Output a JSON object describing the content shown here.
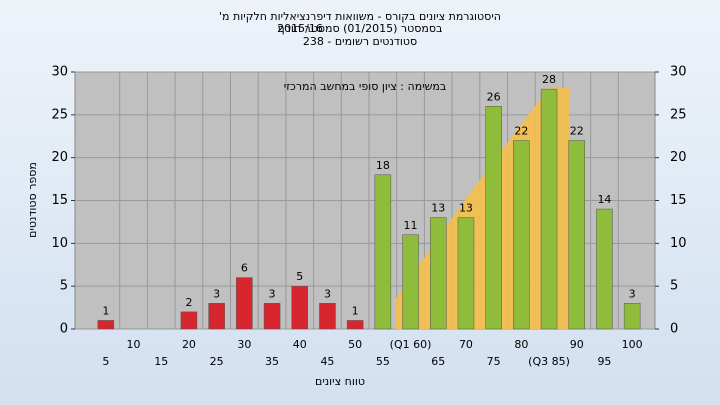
{
  "chart_data": {
    "type": "bar",
    "title_lines": [
      "היסטוגרמת ציונים בקורס - משוואות דיפרנציאליות חלקיות מ'",
      "בסמסטר  (01/2015)  סמסטר חורף",
      "2015/16",
      "סטודנטים רשומים - 238"
    ],
    "annotation": "במשימה : ציון סופי במחשב המרכזי",
    "x_label": "טווח ציונים",
    "y_label": "מספר סטודנטים",
    "categories": [
      "5",
      "10",
      "15",
      "20",
      "25",
      "30",
      "35",
      "40",
      "45",
      "50",
      "55",
      "(Q1 60)",
      "65",
      "70",
      "75",
      "80",
      "(Q3 85)",
      "90",
      "95",
      "100"
    ],
    "values": [
      1,
      0,
      0,
      2,
      3,
      6,
      3,
      5,
      3,
      1,
      18,
      11,
      13,
      13,
      26,
      22,
      28,
      22,
      14,
      3
    ],
    "value_labels": [
      "1",
      null,
      null,
      "2",
      "3",
      "6",
      "3",
      "5",
      "3",
      "1",
      "18",
      "11",
      "13",
      "13",
      "26",
      "22",
      "28",
      "22",
      "14",
      "3"
    ],
    "bar_colors": [
      "#d8262f",
      "#d8262f",
      "#d8262f",
      "#d8262f",
      "#d8262f",
      "#d8262f",
      "#d8262f",
      "#d8262f",
      "#d8262f",
      "#d8262f",
      "#8fbc3a",
      "#8fbc3a",
      "#8fbc3a",
      "#8fbc3a",
      "#8fbc3a",
      "#8fbc3a",
      "#8fbc3a",
      "#8fbc3a",
      "#8fbc3a",
      "#8fbc3a"
    ],
    "ylim": [
      0,
      30
    ],
    "yticks": [
      0,
      5,
      10,
      15,
      20,
      25,
      30
    ],
    "y2lim": [
      0,
      30
    ],
    "y2ticks": [
      0,
      5,
      10,
      15,
      20,
      25,
      30
    ],
    "grid": true
  }
}
